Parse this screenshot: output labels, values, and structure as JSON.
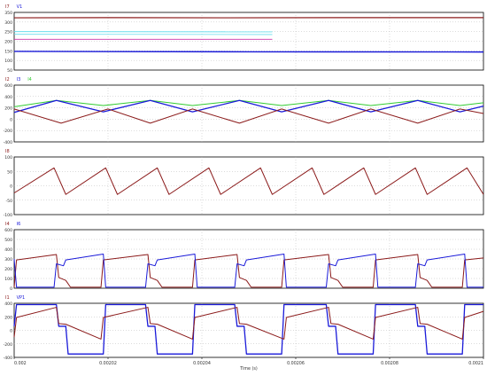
{
  "colors": {
    "dark_red": "#8b1a1a",
    "blue": "#1a1ad9",
    "green": "#33cc33",
    "cyan": "#66ddee",
    "magenta": "#cc33aa",
    "grid": "#b8b8b8",
    "axis": "#000000"
  },
  "time_axis": {
    "label": "Time (s)",
    "ticks": [
      {
        "v": 0.002,
        "t": "0.002"
      },
      {
        "v": 0.00202,
        "t": "0.00202"
      },
      {
        "v": 0.00204,
        "t": "0.00204"
      },
      {
        "v": 0.00206,
        "t": "0.00206"
      },
      {
        "v": 0.00208,
        "t": "0.00208"
      },
      {
        "v": 0.0021,
        "t": "0.0021"
      }
    ],
    "xlim": [
      0.002,
      0.0021
    ]
  },
  "chart_data": [
    {
      "type": "line",
      "legend": [
        {
          "text": "I7",
          "color": "#8b1a1a"
        },
        {
          "text": "V1",
          "color": "#1a1ad9"
        }
      ],
      "ylim": [
        50,
        350
      ],
      "yticks": [
        {
          "v": 350,
          "t": "350"
        },
        {
          "v": 300,
          "t": "300"
        },
        {
          "v": 250,
          "t": "250"
        },
        {
          "v": 200,
          "t": "200"
        },
        {
          "v": 150,
          "t": "150"
        },
        {
          "v": 100,
          "t": "100"
        },
        {
          "v": 50,
          "t": "50"
        }
      ],
      "series": [
        {
          "color": "#8b1a1a",
          "width": 1.2,
          "points": [
            [
              0.002,
              322
            ],
            [
              0.00202,
              323
            ],
            [
              0.002045,
              322
            ],
            [
              0.00207,
              323
            ],
            [
              0.0021,
              323
            ]
          ]
        },
        {
          "color": "#66ddee",
          "width": 1.0,
          "points": [
            [
              0.002,
              250
            ],
            [
              0.002055,
              249
            ]
          ]
        },
        {
          "color": "#66ddee",
          "width": 0.8,
          "points": [
            [
              0.002,
              236
            ],
            [
              0.002055,
              235
            ]
          ]
        },
        {
          "color": "#cc33aa",
          "width": 0.8,
          "points": [
            [
              0.002,
              210
            ],
            [
              0.002055,
              210
            ]
          ]
        },
        {
          "color": "#1a1ad9",
          "width": 1.4,
          "points": [
            [
              0.002,
              147
            ],
            [
              0.00205,
              145
            ],
            [
              0.0021,
              144
            ]
          ]
        }
      ]
    },
    {
      "type": "line",
      "legend": [
        {
          "text": "I2",
          "color": "#8b1a1a"
        },
        {
          "text": "I3",
          "color": "#1a1ad9"
        },
        {
          "text": "I4",
          "color": "#33cc33"
        }
      ],
      "ylim": [
        -400,
        600
      ],
      "yticks": [
        {
          "v": 600,
          "t": "600"
        },
        {
          "v": 400,
          "t": "400"
        },
        {
          "v": 200,
          "t": "200"
        },
        {
          "v": 0,
          "t": "0"
        },
        {
          "v": -200,
          "t": "-200"
        },
        {
          "v": -400,
          "t": "-400"
        }
      ],
      "series": [
        {
          "color": "#33cc33",
          "width": 1.0,
          "points": [
            [
              0.002,
              220
            ],
            [
              0.002009,
              330
            ],
            [
              0.002019,
              240
            ],
            [
              0.002029,
              330
            ],
            [
              0.002038,
              240
            ],
            [
              0.002048,
              330
            ],
            [
              0.002057,
              240
            ],
            [
              0.002067,
              330
            ],
            [
              0.002076,
              240
            ],
            [
              0.002086,
              330
            ],
            [
              0.002095,
              240
            ],
            [
              0.0021,
              290
            ]
          ]
        },
        {
          "color": "#1a1ad9",
          "width": 1.3,
          "points": [
            [
              0.002,
              120
            ],
            [
              0.002009,
              330
            ],
            [
              0.002019,
              130
            ],
            [
              0.002029,
              330
            ],
            [
              0.002038,
              130
            ],
            [
              0.002048,
              330
            ],
            [
              0.002057,
              130
            ],
            [
              0.002067,
              330
            ],
            [
              0.002076,
              130
            ],
            [
              0.002086,
              330
            ],
            [
              0.002095,
              130
            ],
            [
              0.0021,
              230
            ]
          ]
        },
        {
          "color": "#8b1a1a",
          "width": 1.0,
          "points": [
            [
              0.002,
              180
            ],
            [
              0.00201,
              -70
            ],
            [
              0.00202,
              180
            ],
            [
              0.002029,
              -70
            ],
            [
              0.002038,
              180
            ],
            [
              0.002048,
              -70
            ],
            [
              0.002057,
              180
            ],
            [
              0.002067,
              -70
            ],
            [
              0.002076,
              180
            ],
            [
              0.002086,
              -70
            ],
            [
              0.002095,
              180
            ],
            [
              0.0021,
              100
            ]
          ]
        }
      ]
    },
    {
      "type": "line",
      "legend": [
        {
          "text": "I8",
          "color": "#8b1a1a"
        }
      ],
      "ylim": [
        -100,
        100
      ],
      "yticks": [
        {
          "v": 100,
          "t": "100"
        },
        {
          "v": 50,
          "t": "50"
        },
        {
          "v": 0,
          "t": "0"
        },
        {
          "v": -50,
          "t": "-50"
        },
        {
          "v": -100,
          "t": "-100"
        }
      ],
      "series": [
        {
          "color": "#8b1a1a",
          "width": 1.0,
          "points": [
            [
              0.002,
              -25
            ],
            [
              0.0020085,
              62
            ],
            [
              0.002011,
              -30
            ],
            [
              0.0020195,
              62
            ],
            [
              0.002022,
              -30
            ],
            [
              0.0020305,
              62
            ],
            [
              0.002033,
              -30
            ],
            [
              0.0020415,
              62
            ],
            [
              0.002044,
              -30
            ],
            [
              0.0020525,
              62
            ],
            [
              0.002055,
              -30
            ],
            [
              0.0020635,
              62
            ],
            [
              0.002066,
              -30
            ],
            [
              0.0020745,
              62
            ],
            [
              0.002077,
              -30
            ],
            [
              0.0020855,
              62
            ],
            [
              0.002088,
              -30
            ],
            [
              0.0020965,
              62
            ],
            [
              0.0021,
              -30
            ]
          ]
        }
      ]
    },
    {
      "type": "line",
      "legend": [
        {
          "text": "I4",
          "color": "#8b1a1a"
        },
        {
          "text": "I6",
          "color": "#1a1ad9"
        }
      ],
      "ylim": [
        0,
        600
      ],
      "yticks": [
        {
          "v": 600,
          "t": "600"
        },
        {
          "v": 500,
          "t": "500"
        },
        {
          "v": 400,
          "t": "400"
        },
        {
          "v": 300,
          "t": "300"
        },
        {
          "v": 200,
          "t": "200"
        },
        {
          "v": 100,
          "t": "100"
        },
        {
          "v": 0,
          "t": "0"
        }
      ],
      "series": [
        {
          "color": "#8b1a1a",
          "width": 1.0,
          "points": [
            [
              0.002,
              10
            ],
            [
              0.0020005,
              290
            ],
            [
              0.002009,
              345
            ],
            [
              0.0020095,
              110
            ],
            [
              0.002011,
              80
            ],
            [
              0.002012,
              10
            ],
            [
              0.0020185,
              10
            ],
            [
              0.002019,
              290
            ],
            [
              0.0020285,
              345
            ],
            [
              0.002029,
              110
            ],
            [
              0.0020305,
              80
            ],
            [
              0.0020315,
              10
            ],
            [
              0.002038,
              10
            ],
            [
              0.0020385,
              290
            ],
            [
              0.0020475,
              345
            ],
            [
              0.002048,
              110
            ],
            [
              0.0020495,
              80
            ],
            [
              0.0020505,
              10
            ],
            [
              0.002057,
              10
            ],
            [
              0.0020575,
              290
            ],
            [
              0.002067,
              345
            ],
            [
              0.0020675,
              110
            ],
            [
              0.002069,
              80
            ],
            [
              0.00207,
              10
            ],
            [
              0.0020765,
              10
            ],
            [
              0.002077,
              290
            ],
            [
              0.002086,
              345
            ],
            [
              0.0020865,
              110
            ],
            [
              0.002088,
              80
            ],
            [
              0.002089,
              10
            ],
            [
              0.0020955,
              10
            ],
            [
              0.002096,
              290
            ],
            [
              0.0021,
              310
            ]
          ]
        },
        {
          "color": "#1a1ad9",
          "width": 1.0,
          "points": [
            [
              0.002,
              300
            ],
            [
              0.0020005,
              10
            ],
            [
              0.0020085,
              10
            ],
            [
              0.002009,
              250
            ],
            [
              0.0020105,
              230
            ],
            [
              0.002011,
              290
            ],
            [
              0.002019,
              350
            ],
            [
              0.0020195,
              10
            ],
            [
              0.002028,
              10
            ],
            [
              0.0020285,
              250
            ],
            [
              0.00203,
              230
            ],
            [
              0.0020305,
              290
            ],
            [
              0.0020385,
              350
            ],
            [
              0.002039,
              10
            ],
            [
              0.002047,
              10
            ],
            [
              0.0020475,
              250
            ],
            [
              0.002049,
              230
            ],
            [
              0.0020495,
              290
            ],
            [
              0.0020575,
              350
            ],
            [
              0.002058,
              10
            ],
            [
              0.0020665,
              10
            ],
            [
              0.002067,
              250
            ],
            [
              0.0020685,
              230
            ],
            [
              0.002069,
              290
            ],
            [
              0.002077,
              350
            ],
            [
              0.0020775,
              10
            ],
            [
              0.0020855,
              10
            ],
            [
              0.002086,
              250
            ],
            [
              0.0020875,
              230
            ],
            [
              0.002088,
              290
            ],
            [
              0.002096,
              350
            ],
            [
              0.0020965,
              10
            ],
            [
              0.0021,
              10
            ]
          ]
        }
      ]
    },
    {
      "type": "line",
      "legend": [
        {
          "text": "I1",
          "color": "#8b1a1a"
        },
        {
          "text": "VP1",
          "color": "#1a1ad9"
        }
      ],
      "ylim": [
        -400,
        400
      ],
      "yticks": [
        {
          "v": 400,
          "t": "400"
        },
        {
          "v": 200,
          "t": "200"
        },
        {
          "v": 0,
          "t": "0"
        },
        {
          "v": -200,
          "t": "-200"
        },
        {
          "v": -400,
          "t": "-400"
        }
      ],
      "series": [
        {
          "color": "#1a1ad9",
          "width": 1.3,
          "points": [
            [
              0.002,
              60
            ],
            [
              0.0020005,
              380
            ],
            [
              0.002009,
              380
            ],
            [
              0.0020095,
              60
            ],
            [
              0.002011,
              60
            ],
            [
              0.0020115,
              -350
            ],
            [
              0.002019,
              -350
            ],
            [
              0.0020195,
              380
            ],
            [
              0.002028,
              380
            ],
            [
              0.0020285,
              60
            ],
            [
              0.00203,
              60
            ],
            [
              0.0020305,
              -350
            ],
            [
              0.002038,
              -350
            ],
            [
              0.0020385,
              380
            ],
            [
              0.002047,
              380
            ],
            [
              0.0020475,
              60
            ],
            [
              0.002049,
              60
            ],
            [
              0.0020495,
              -350
            ],
            [
              0.002057,
              -350
            ],
            [
              0.0020575,
              380
            ],
            [
              0.0020665,
              380
            ],
            [
              0.002067,
              60
            ],
            [
              0.0020685,
              60
            ],
            [
              0.002069,
              -350
            ],
            [
              0.0020765,
              -350
            ],
            [
              0.002077,
              380
            ],
            [
              0.0020855,
              380
            ],
            [
              0.002086,
              60
            ],
            [
              0.0020875,
              60
            ],
            [
              0.002088,
              -350
            ],
            [
              0.0020955,
              -350
            ],
            [
              0.002096,
              380
            ],
            [
              0.0021,
              380
            ]
          ]
        },
        {
          "color": "#8b1a1a",
          "width": 1.0,
          "points": [
            [
              0.002,
              -100
            ],
            [
              0.0020005,
              190
            ],
            [
              0.002009,
              340
            ],
            [
              0.0020095,
              100
            ],
            [
              0.002011,
              90
            ],
            [
              0.0020185,
              -130
            ],
            [
              0.002019,
              190
            ],
            [
              0.0020285,
              340
            ],
            [
              0.002029,
              100
            ],
            [
              0.0020305,
              90
            ],
            [
              0.002038,
              -130
            ],
            [
              0.0020385,
              190
            ],
            [
              0.0020475,
              340
            ],
            [
              0.002048,
              100
            ],
            [
              0.0020495,
              90
            ],
            [
              0.0020575,
              -130
            ],
            [
              0.002058,
              190
            ],
            [
              0.002067,
              340
            ],
            [
              0.0020675,
              100
            ],
            [
              0.002069,
              90
            ],
            [
              0.0020765,
              -130
            ],
            [
              0.002077,
              190
            ],
            [
              0.002086,
              340
            ],
            [
              0.0020865,
              100
            ],
            [
              0.002088,
              90
            ],
            [
              0.0020955,
              -130
            ],
            [
              0.002096,
              190
            ],
            [
              0.0021,
              280
            ]
          ]
        }
      ]
    }
  ]
}
